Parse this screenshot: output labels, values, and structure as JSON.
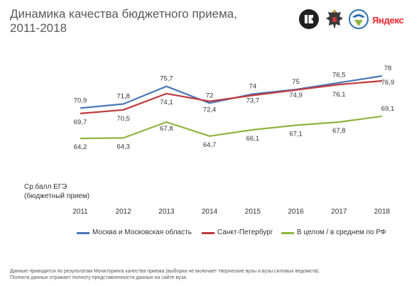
{
  "header": {
    "title_line1": "Динамика качества бюджетного приема,",
    "title_line2": "2011-2018",
    "brand_text": "Яндекс"
  },
  "y_axis_note": {
    "line1": "Ср.балл ЕГЭ",
    "line2": "(бюджетный прием)"
  },
  "footnote": {
    "line1": "Данные приводятся по результатам Мониторинга качества приема (выборка не включает творческие вузы и вузы силовых ведомств).",
    "line2": "Полнота данных отражает полноту представленности данных на сайте вуза."
  },
  "chart_data": {
    "type": "line",
    "x": [
      "2011",
      "2012",
      "2013",
      "2014",
      "2015",
      "2016",
      "2017",
      "2018"
    ],
    "ylim": [
      60,
      80
    ],
    "grid": false,
    "legend_position": "bottom",
    "series": [
      {
        "name": "Москва и Московская область",
        "color": "#4a77b8",
        "values": [
          70.9,
          71.8,
          75.7,
          72,
          74,
          75,
          76.5,
          78
        ],
        "labels": [
          "70,9",
          "71,8",
          "75,7",
          "72",
          "74",
          "75",
          "76,5",
          "78"
        ]
      },
      {
        "name": "Санкт-Петербург",
        "color": "#c0393b",
        "values": [
          69.7,
          70.5,
          74.1,
          72.4,
          73.7,
          74.9,
          76.1,
          76.9
        ],
        "labels": [
          "69,7",
          "70,5",
          "74,1",
          "72,4",
          "73,7",
          "74,9",
          "76,1",
          "76,9"
        ]
      },
      {
        "name": "В целом / в среднем по РФ",
        "color": "#8db53e",
        "values": [
          64.2,
          64.3,
          67.8,
          64.7,
          66.1,
          67.1,
          67.8,
          69.1
        ],
        "labels": [
          "64,2",
          "64,3",
          "67,8",
          "64,7",
          "66,1",
          "67,1",
          "67,8",
          "69,1"
        ]
      }
    ]
  }
}
